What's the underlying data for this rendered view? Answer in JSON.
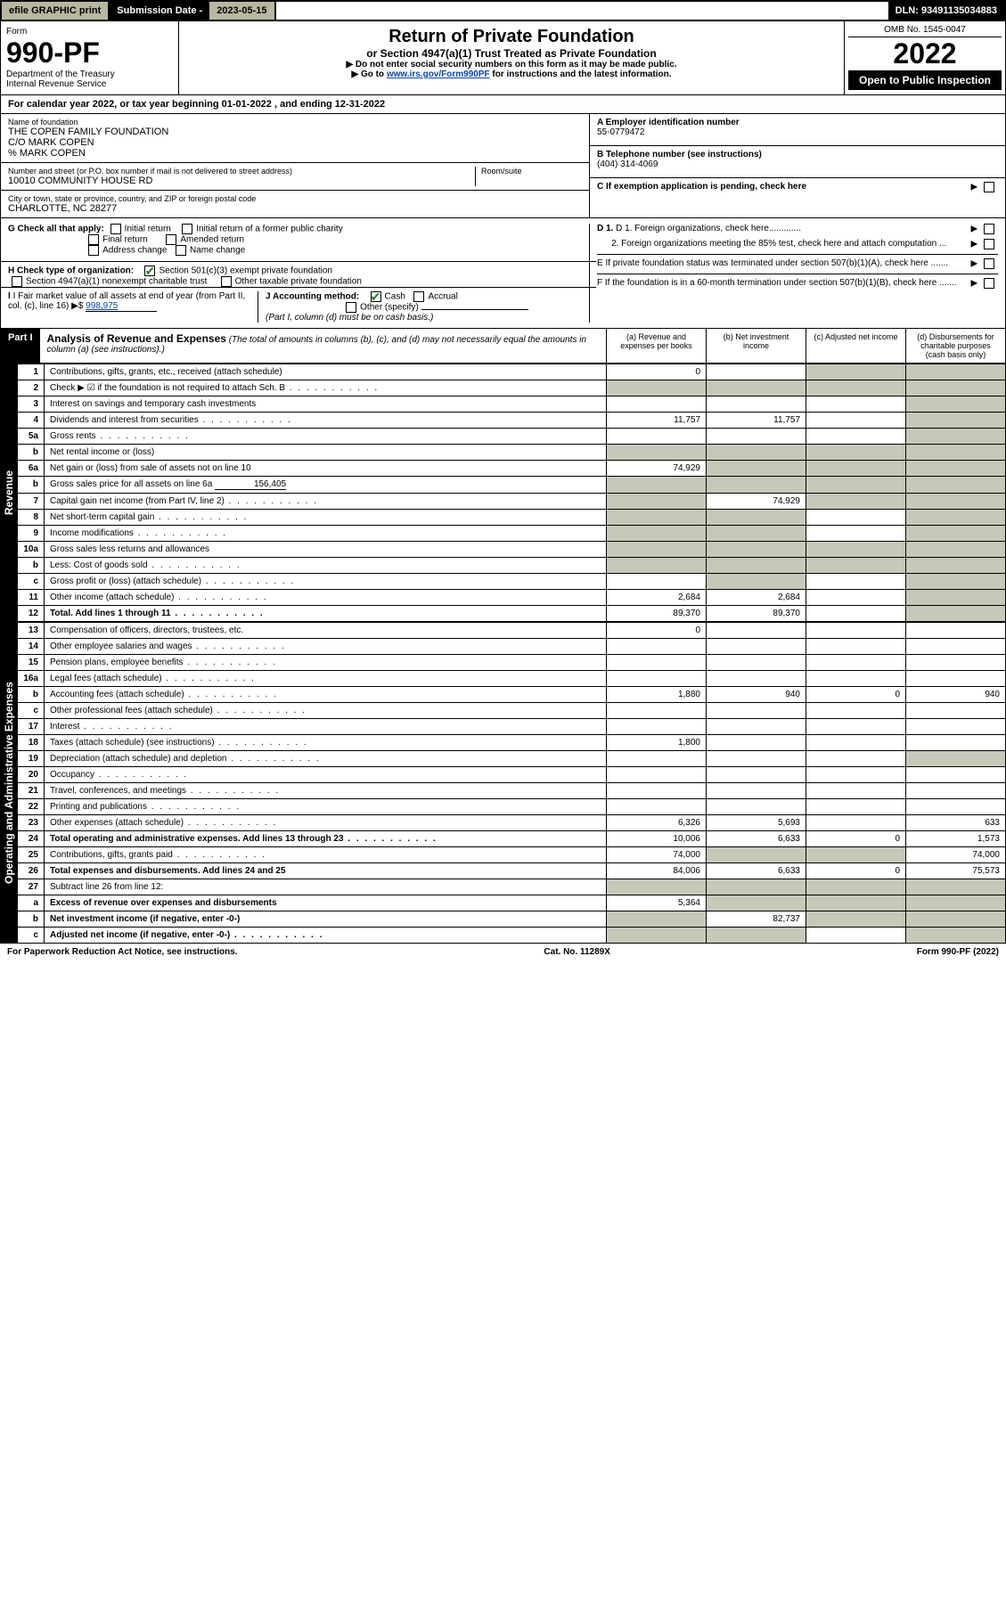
{
  "topbar": {
    "efile": "efile GRAPHIC print",
    "sub_label": "Submission Date - ",
    "sub_date": "2023-05-15",
    "dln": "DLN: 93491135034883"
  },
  "header": {
    "form_word": "Form",
    "form_num": "990-PF",
    "dept": "Department of the Treasury",
    "irs": "Internal Revenue Service",
    "title": "Return of Private Foundation",
    "subtitle": "or Section 4947(a)(1) Trust Treated as Private Foundation",
    "note1": "▶ Do not enter social security numbers on this form as it may be made public.",
    "note2_pre": "▶ Go to ",
    "note2_link": "www.irs.gov/Form990PF",
    "note2_post": " for instructions and the latest information.",
    "omb": "OMB No. 1545-0047",
    "year": "2022",
    "open": "Open to Public Inspection"
  },
  "calyear": "For calendar year 2022, or tax year beginning 01-01-2022                          , and ending 12-31-2022",
  "foundation": {
    "name_label": "Name of foundation",
    "name": "THE COPEN FAMILY FOUNDATION",
    "co1": "C/O MARK COPEN",
    "co2": "% MARK COPEN",
    "addr_label": "Number and street (or P.O. box number if mail is not delivered to street address)",
    "addr": "10010 COMMUNITY HOUSE RD",
    "room_label": "Room/suite",
    "city_label": "City or town, state or province, country, and ZIP or foreign postal code",
    "city": "CHARLOTTE, NC  28277",
    "ein_label": "A Employer identification number",
    "ein": "55-0779472",
    "tel_label": "B Telephone number (see instructions)",
    "tel": "(404) 314-4069",
    "c_label": "C If exemption application is pending, check here",
    "d1": "D 1. Foreign organizations, check here.............",
    "d2": "2. Foreign organizations meeting the 85% test, check here and attach computation ...",
    "e": "E  If private foundation status was terminated under section 507(b)(1)(A), check here .......",
    "f": "F  If the foundation is in a 60-month termination under section 507(b)(1)(B), check here .......",
    "g_label": "G Check all that apply:",
    "g_opts": [
      "Initial return",
      "Initial return of a former public charity",
      "Final return",
      "Amended return",
      "Address change",
      "Name change"
    ],
    "h_label": "H Check type of organization:",
    "h_opts": [
      "Section 501(c)(3) exempt private foundation",
      "Section 4947(a)(1) nonexempt charitable trust",
      "Other taxable private foundation"
    ],
    "i_label": "I Fair market value of all assets at end of year (from Part II, col. (c), line 16) ▶$",
    "i_val": "998,975",
    "j_label": "J Accounting method:",
    "j_cash": "Cash",
    "j_accrual": "Accrual",
    "j_other": "Other (specify)",
    "j_note": "(Part I, column (d) must be on cash basis.)"
  },
  "part1": {
    "label": "Part I",
    "title": "Analysis of Revenue and Expenses",
    "note": "(The total of amounts in columns (b), (c), and (d) may not necessarily equal the amounts in column (a) (see instructions).)",
    "col_a": "(a) Revenue and expenses per books",
    "col_b": "(b) Net investment income",
    "col_c": "(c) Adjusted net income",
    "col_d": "(d) Disbursements for charitable purposes (cash basis only)"
  },
  "sections": {
    "revenue": "Revenue",
    "expenses": "Operating and Administrative Expenses"
  },
  "rows": [
    {
      "n": "1",
      "desc": "Contributions, gifts, grants, etc., received (attach schedule)",
      "a": "0",
      "b": "",
      "c": "g",
      "d": "g"
    },
    {
      "n": "2",
      "desc": "Check ▶ ☑ if the foundation is not required to attach Sch. B",
      "dots": true,
      "a": "g",
      "b": "g",
      "c": "g",
      "d": "g"
    },
    {
      "n": "3",
      "desc": "Interest on savings and temporary cash investments",
      "a": "",
      "b": "",
      "c": "",
      "d": "g"
    },
    {
      "n": "4",
      "desc": "Dividends and interest from securities",
      "dots": true,
      "a": "11,757",
      "b": "11,757",
      "c": "",
      "d": "g"
    },
    {
      "n": "5a",
      "desc": "Gross rents",
      "dots": true,
      "a": "",
      "b": "",
      "c": "",
      "d": "g"
    },
    {
      "n": "b",
      "desc": "Net rental income or (loss)",
      "inline": true,
      "a": "g",
      "b": "g",
      "c": "g",
      "d": "g"
    },
    {
      "n": "6a",
      "desc": "Net gain or (loss) from sale of assets not on line 10",
      "a": "74,929",
      "b": "g",
      "c": "g",
      "d": "g"
    },
    {
      "n": "b",
      "desc": "Gross sales price for all assets on line 6a",
      "inline": true,
      "inline_val": "156,405",
      "a": "g",
      "b": "g",
      "c": "g",
      "d": "g"
    },
    {
      "n": "7",
      "desc": "Capital gain net income (from Part IV, line 2)",
      "dots": true,
      "a": "g",
      "b": "74,929",
      "c": "g",
      "d": "g"
    },
    {
      "n": "8",
      "desc": "Net short-term capital gain",
      "dots": true,
      "a": "g",
      "b": "g",
      "c": "",
      "d": "g"
    },
    {
      "n": "9",
      "desc": "Income modifications",
      "dots": true,
      "a": "g",
      "b": "g",
      "c": "",
      "d": "g"
    },
    {
      "n": "10a",
      "desc": "Gross sales less returns and allowances",
      "inline": true,
      "a": "g",
      "b": "g",
      "c": "g",
      "d": "g"
    },
    {
      "n": "b",
      "desc": "Less: Cost of goods sold",
      "dots": true,
      "inline": true,
      "a": "g",
      "b": "g",
      "c": "g",
      "d": "g"
    },
    {
      "n": "c",
      "desc": "Gross profit or (loss) (attach schedule)",
      "dots": true,
      "a": "",
      "b": "g",
      "c": "",
      "d": "g"
    },
    {
      "n": "11",
      "desc": "Other income (attach schedule)",
      "dots": true,
      "a": "2,684",
      "b": "2,684",
      "c": "",
      "d": "g"
    },
    {
      "n": "12",
      "desc": "Total. Add lines 1 through 11",
      "dots": true,
      "bold": true,
      "a": "89,370",
      "b": "89,370",
      "c": "",
      "d": "g"
    }
  ],
  "rows2": [
    {
      "n": "13",
      "desc": "Compensation of officers, directors, trustees, etc.",
      "a": "0",
      "b": "",
      "c": "",
      "d": ""
    },
    {
      "n": "14",
      "desc": "Other employee salaries and wages",
      "dots": true,
      "a": "",
      "b": "",
      "c": "",
      "d": ""
    },
    {
      "n": "15",
      "desc": "Pension plans, employee benefits",
      "dots": true,
      "a": "",
      "b": "",
      "c": "",
      "d": ""
    },
    {
      "n": "16a",
      "desc": "Legal fees (attach schedule)",
      "dots": true,
      "a": "",
      "b": "",
      "c": "",
      "d": ""
    },
    {
      "n": "b",
      "desc": "Accounting fees (attach schedule)",
      "dots": true,
      "a": "1,880",
      "b": "940",
      "c": "0",
      "d": "940"
    },
    {
      "n": "c",
      "desc": "Other professional fees (attach schedule)",
      "dots": true,
      "a": "",
      "b": "",
      "c": "",
      "d": ""
    },
    {
      "n": "17",
      "desc": "Interest",
      "dots": true,
      "a": "",
      "b": "",
      "c": "",
      "d": ""
    },
    {
      "n": "18",
      "desc": "Taxes (attach schedule) (see instructions)",
      "dots": true,
      "a": "1,800",
      "b": "",
      "c": "",
      "d": ""
    },
    {
      "n": "19",
      "desc": "Depreciation (attach schedule) and depletion",
      "dots": true,
      "a": "",
      "b": "",
      "c": "",
      "d": "g"
    },
    {
      "n": "20",
      "desc": "Occupancy",
      "dots": true,
      "a": "",
      "b": "",
      "c": "",
      "d": ""
    },
    {
      "n": "21",
      "desc": "Travel, conferences, and meetings",
      "dots": true,
      "a": "",
      "b": "",
      "c": "",
      "d": ""
    },
    {
      "n": "22",
      "desc": "Printing and publications",
      "dots": true,
      "a": "",
      "b": "",
      "c": "",
      "d": ""
    },
    {
      "n": "23",
      "desc": "Other expenses (attach schedule)",
      "dots": true,
      "a": "6,326",
      "b": "5,693",
      "c": "",
      "d": "633"
    },
    {
      "n": "24",
      "desc": "Total operating and administrative expenses. Add lines 13 through 23",
      "dots": true,
      "bold": true,
      "a": "10,006",
      "b": "6,633",
      "c": "0",
      "d": "1,573"
    },
    {
      "n": "25",
      "desc": "Contributions, gifts, grants paid",
      "dots": true,
      "a": "74,000",
      "b": "g",
      "c": "g",
      "d": "74,000"
    },
    {
      "n": "26",
      "desc": "Total expenses and disbursements. Add lines 24 and 25",
      "bold": true,
      "a": "84,006",
      "b": "6,633",
      "c": "0",
      "d": "75,573"
    },
    {
      "n": "27",
      "desc": "Subtract line 26 from line 12:",
      "a": "g",
      "b": "g",
      "c": "g",
      "d": "g"
    },
    {
      "n": "a",
      "desc": "Excess of revenue over expenses and disbursements",
      "bold": true,
      "a": "5,364",
      "b": "g",
      "c": "g",
      "d": "g"
    },
    {
      "n": "b",
      "desc": "Net investment income (if negative, enter -0-)",
      "bold": true,
      "a": "g",
      "b": "82,737",
      "c": "g",
      "d": "g"
    },
    {
      "n": "c",
      "desc": "Adjusted net income (if negative, enter -0-)",
      "dots": true,
      "bold": true,
      "a": "g",
      "b": "g",
      "c": "",
      "d": "g"
    }
  ],
  "footer": {
    "left": "For Paperwork Reduction Act Notice, see instructions.",
    "mid": "Cat. No. 11289X",
    "right": "Form 990-PF (2022)"
  }
}
